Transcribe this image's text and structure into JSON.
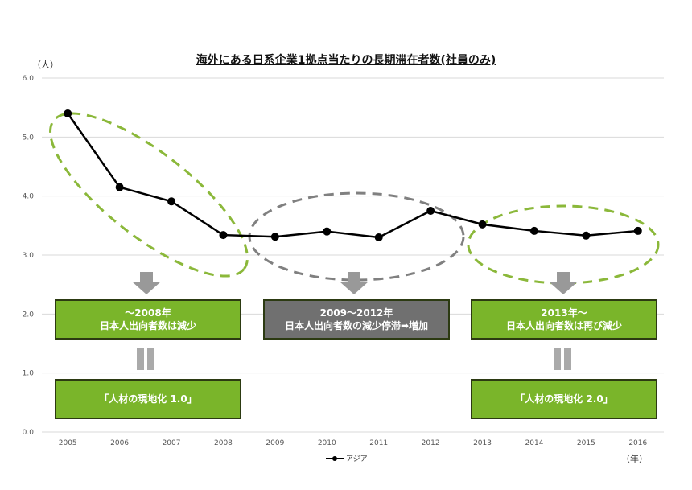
{
  "chart_data": {
    "type": "line",
    "title": "海外にある日系企業1拠点当たりの長期滞在者数(社員のみ)",
    "ylabel": "（人）",
    "xlabel": "（年）",
    "categories": [
      "2005",
      "2006",
      "2007",
      "2008",
      "2009",
      "2010",
      "2011",
      "2012",
      "2013",
      "2014",
      "2015",
      "2016"
    ],
    "series": [
      {
        "name": "アジア",
        "values": [
          5.4,
          4.15,
          3.91,
          3.34,
          3.31,
          3.4,
          3.3,
          3.75,
          3.52,
          3.41,
          3.33,
          3.41
        ],
        "color": "#000000"
      }
    ],
    "ylim": [
      0,
      6
    ],
    "yticks": [
      "0.0",
      "1.0",
      "2.0",
      "3.0",
      "4.0",
      "5.0",
      "6.0"
    ],
    "grid": true,
    "legend": "bottom"
  },
  "annotations": {
    "box1": {
      "line1": "～2008年",
      "line2": "日本人出向者数は減少"
    },
    "box2": {
      "line1": "2009～2012年",
      "line2": "日本人出向者数の減少停滞➡増加"
    },
    "box3": {
      "line1": "2013年～",
      "line2": "日本人出向者数は再び減少"
    },
    "box4": {
      "line1": "「人材の現地化 1.0」"
    },
    "box5": {
      "line1": "「人材の現地化 2.0」"
    }
  },
  "colors": {
    "green": "#7ab52a",
    "gray": "#707070",
    "ellipse_green": "#8bb83a",
    "ellipse_gray": "#808080"
  }
}
